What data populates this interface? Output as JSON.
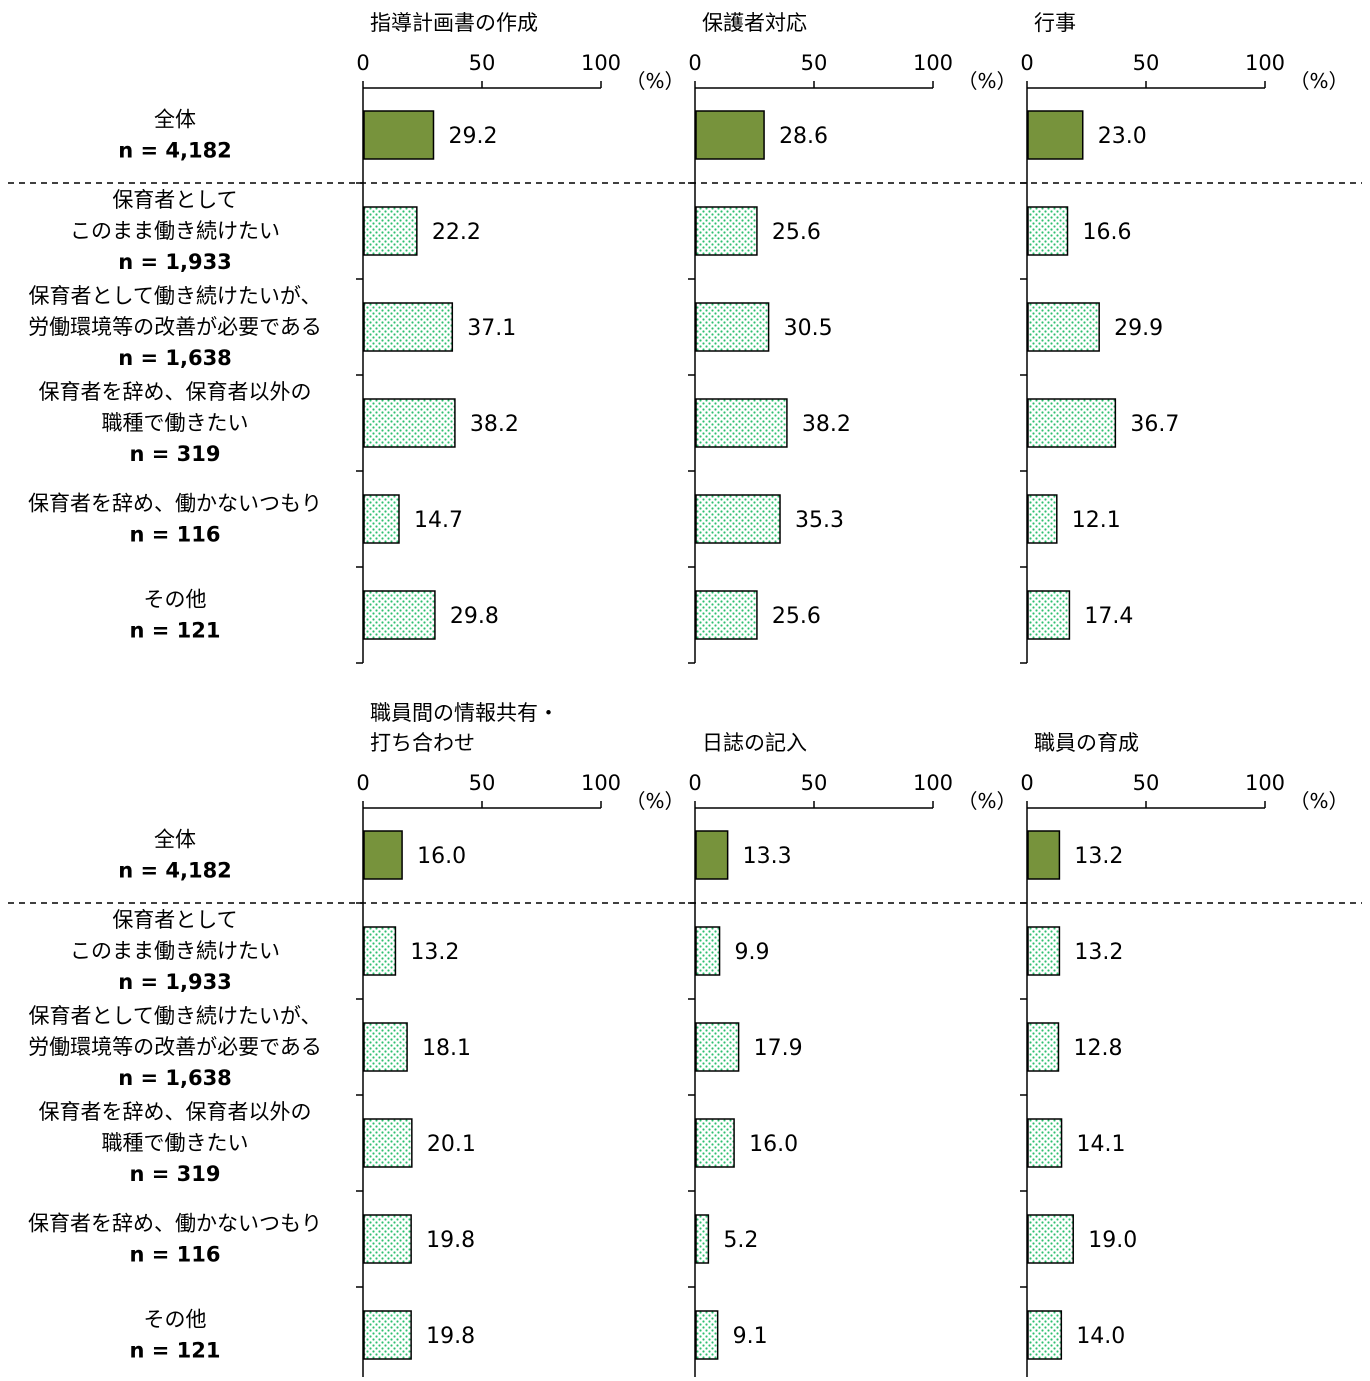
{
  "unit_label": "（%）",
  "chart_data": [
    {
      "type": "bar",
      "orientation": "horizontal",
      "title_lines": [
        "指導計画書の作成"
      ],
      "xlim": [
        0,
        100
      ],
      "ticks": [
        0,
        50,
        100
      ],
      "values": [
        29.2,
        22.2,
        37.1,
        38.2,
        14.7,
        29.8
      ],
      "value_labels": [
        "29.2",
        "22.2",
        "37.1",
        "38.2",
        "14.7",
        "29.8"
      ]
    },
    {
      "type": "bar",
      "orientation": "horizontal",
      "title_lines": [
        "保護者対応"
      ],
      "xlim": [
        0,
        100
      ],
      "ticks": [
        0,
        50,
        100
      ],
      "values": [
        28.6,
        25.6,
        30.5,
        38.2,
        35.3,
        25.6
      ],
      "value_labels": [
        "28.6",
        "25.6",
        "30.5",
        "38.2",
        "35.3",
        "25.6"
      ]
    },
    {
      "type": "bar",
      "orientation": "horizontal",
      "title_lines": [
        "行事"
      ],
      "xlim": [
        0,
        100
      ],
      "ticks": [
        0,
        50,
        100
      ],
      "values": [
        23.0,
        16.6,
        29.9,
        36.7,
        12.1,
        17.4
      ],
      "value_labels": [
        "23.0",
        "16.6",
        "29.9",
        "36.7",
        "12.1",
        "17.4"
      ]
    },
    {
      "type": "bar",
      "orientation": "horizontal",
      "title_lines": [
        "職員間の情報共有・",
        "打ち合わせ"
      ],
      "xlim": [
        0,
        100
      ],
      "ticks": [
        0,
        50,
        100
      ],
      "values": [
        16.0,
        13.2,
        18.1,
        20.1,
        19.8,
        19.8
      ],
      "value_labels": [
        "16.0",
        "13.2",
        "18.1",
        "20.1",
        "19.8",
        "19.8"
      ]
    },
    {
      "type": "bar",
      "orientation": "horizontal",
      "title_lines": [
        "日誌の記入"
      ],
      "xlim": [
        0,
        100
      ],
      "ticks": [
        0,
        50,
        100
      ],
      "values": [
        13.3,
        9.9,
        17.9,
        16.0,
        5.2,
        9.1
      ],
      "value_labels": [
        "13.3",
        "9.9",
        "17.9",
        "16.0",
        "5.2",
        "9.1"
      ]
    },
    {
      "type": "bar",
      "orientation": "horizontal",
      "title_lines": [
        "職員の育成"
      ],
      "xlim": [
        0,
        100
      ],
      "ticks": [
        0,
        50,
        100
      ],
      "values": [
        13.2,
        13.2,
        12.8,
        14.1,
        19.0,
        14.0
      ],
      "value_labels": [
        "13.2",
        "13.2",
        "12.8",
        "14.1",
        "19.0",
        "14.0"
      ]
    }
  ],
  "categories": [
    {
      "lines": [
        "全体"
      ],
      "n": "n = 4,182"
    },
    {
      "lines": [
        "保育者として",
        "このまま働き続けたい"
      ],
      "n": "n = 1,933"
    },
    {
      "lines": [
        "保育者として働き続けたいが、",
        "労働環境等の改善が必要である"
      ],
      "n": "n = 1,638"
    },
    {
      "lines": [
        "保育者を辞め、保育者以外の",
        "職種で働きたい"
      ],
      "n": "n = 319"
    },
    {
      "lines": [
        "保育者を辞め、働かないつもり"
      ],
      "n": "n = 116"
    },
    {
      "lines": [
        "その他"
      ],
      "n": "n = 121"
    }
  ],
  "colors": {
    "total_bar": "#77933c",
    "group_bar_fill": "#ffffff",
    "group_bar_dots": "#2fbf71",
    "bar_stroke": "#000000",
    "axis": "#000000"
  }
}
